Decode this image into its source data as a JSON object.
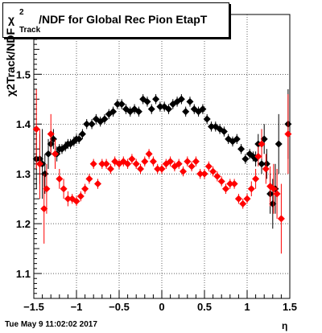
{
  "title": {
    "chi": "χ",
    "sup": "2",
    "sub": "Track",
    "rest": "/NDF for Global Rec Pion EtapT"
  },
  "footer": "Tue May  9 11:02:02 2017",
  "chart_data": {
    "type": "scatter",
    "title": "χ2Track/NDF for Global Rec Pion EtapT",
    "xlabel": "η",
    "ylabel": "χ2Track/NDF",
    "xlim": [
      -1.5,
      1.5
    ],
    "ylim": [
      1.05,
      1.62
    ],
    "x_ticks": [
      -1.5,
      -1,
      -0.5,
      0,
      0.5,
      1,
      1.5
    ],
    "x_tick_labels": [
      "−1.5",
      "−1",
      "−0.5",
      "0",
      "0.5",
      "1",
      "1.5"
    ],
    "y_ticks": [
      1.1,
      1.2,
      1.3,
      1.4,
      1.5
    ],
    "y_tick_labels": [
      "1.1",
      "1.2",
      "1.3",
      "1.4",
      "1.5"
    ],
    "grid": true,
    "series": [
      {
        "color": "#000000",
        "marker": "diamond",
        "points": [
          {
            "x": -1.47,
            "y": 1.33,
            "err": 0.06
          },
          {
            "x": -1.43,
            "y": 1.33,
            "err": 0.05
          },
          {
            "x": -1.4,
            "y": 1.32,
            "err": 0.07
          },
          {
            "x": -1.37,
            "y": 1.3,
            "err": 0.04
          },
          {
            "x": -1.33,
            "y": 1.34,
            "err": 0.03
          },
          {
            "x": -1.3,
            "y": 1.36,
            "err": 0.02
          },
          {
            "x": -1.27,
            "y": 1.37,
            "err": 0.02
          },
          {
            "x": -1.23,
            "y": 1.34,
            "err": 0.015
          },
          {
            "x": -1.2,
            "y": 1.35,
            "err": 0.01
          },
          {
            "x": -1.17,
            "y": 1.35,
            "err": 0.01
          },
          {
            "x": -1.13,
            "y": 1.355,
            "err": 0.01
          },
          {
            "x": -1.1,
            "y": 1.36,
            "err": 0.01
          },
          {
            "x": -1.07,
            "y": 1.36,
            "err": 0.01
          },
          {
            "x": -1.03,
            "y": 1.365,
            "err": 0.01
          },
          {
            "x": -1.0,
            "y": 1.37,
            "err": 0.01
          },
          {
            "x": -0.97,
            "y": 1.37,
            "err": 0.01
          },
          {
            "x": -0.93,
            "y": 1.38,
            "err": 0.01
          },
          {
            "x": -0.88,
            "y": 1.4,
            "err": 0.01
          },
          {
            "x": -0.82,
            "y": 1.4,
            "err": 0.01
          },
          {
            "x": -0.77,
            "y": 1.41,
            "err": 0.01
          },
          {
            "x": -0.72,
            "y": 1.405,
            "err": 0.01
          },
          {
            "x": -0.67,
            "y": 1.41,
            "err": 0.01
          },
          {
            "x": -0.62,
            "y": 1.42,
            "err": 0.01
          },
          {
            "x": -0.57,
            "y": 1.425,
            "err": 0.01
          },
          {
            "x": -0.52,
            "y": 1.44,
            "err": 0.01
          },
          {
            "x": -0.47,
            "y": 1.44,
            "err": 0.01
          },
          {
            "x": -0.42,
            "y": 1.43,
            "err": 0.01
          },
          {
            "x": -0.37,
            "y": 1.425,
            "err": 0.01
          },
          {
            "x": -0.32,
            "y": 1.43,
            "err": 0.01
          },
          {
            "x": -0.27,
            "y": 1.425,
            "err": 0.01
          },
          {
            "x": -0.22,
            "y": 1.45,
            "err": 0.01
          },
          {
            "x": -0.17,
            "y": 1.445,
            "err": 0.01
          },
          {
            "x": -0.12,
            "y": 1.43,
            "err": 0.01
          },
          {
            "x": -0.07,
            "y": 1.45,
            "err": 0.01
          },
          {
            "x": -0.02,
            "y": 1.435,
            "err": 0.01
          },
          {
            "x": 0.03,
            "y": 1.435,
            "err": 0.01
          },
          {
            "x": 0.08,
            "y": 1.43,
            "err": 0.01
          },
          {
            "x": 0.13,
            "y": 1.44,
            "err": 0.01
          },
          {
            "x": 0.18,
            "y": 1.445,
            "err": 0.01
          },
          {
            "x": 0.23,
            "y": 1.45,
            "err": 0.01
          },
          {
            "x": 0.28,
            "y": 1.425,
            "err": 0.01
          },
          {
            "x": 0.33,
            "y": 1.445,
            "err": 0.01
          },
          {
            "x": 0.38,
            "y": 1.43,
            "err": 0.01
          },
          {
            "x": 0.43,
            "y": 1.425,
            "err": 0.01
          },
          {
            "x": 0.48,
            "y": 1.43,
            "err": 0.01
          },
          {
            "x": 0.53,
            "y": 1.41,
            "err": 0.01
          },
          {
            "x": 0.58,
            "y": 1.395,
            "err": 0.01
          },
          {
            "x": 0.63,
            "y": 1.395,
            "err": 0.01
          },
          {
            "x": 0.68,
            "y": 1.39,
            "err": 0.01
          },
          {
            "x": 0.73,
            "y": 1.385,
            "err": 0.01
          },
          {
            "x": 0.78,
            "y": 1.37,
            "err": 0.01
          },
          {
            "x": 0.83,
            "y": 1.365,
            "err": 0.01
          },
          {
            "x": 0.88,
            "y": 1.37,
            "err": 0.01
          },
          {
            "x": 0.93,
            "y": 1.35,
            "err": 0.01
          },
          {
            "x": 0.98,
            "y": 1.33,
            "err": 0.01
          },
          {
            "x": 1.03,
            "y": 1.34,
            "err": 0.01
          },
          {
            "x": 1.07,
            "y": 1.335,
            "err": 0.01
          },
          {
            "x": 1.1,
            "y": 1.33,
            "err": 0.015
          },
          {
            "x": 1.13,
            "y": 1.36,
            "err": 0.02
          },
          {
            "x": 1.17,
            "y": 1.32,
            "err": 0.02
          },
          {
            "x": 1.2,
            "y": 1.37,
            "err": 0.03
          },
          {
            "x": 1.23,
            "y": 1.32,
            "err": 0.03
          },
          {
            "x": 1.27,
            "y": 1.26,
            "err": 0.04
          },
          {
            "x": 1.3,
            "y": 1.24,
            "err": 0.05
          },
          {
            "x": 1.33,
            "y": 1.27,
            "err": 0.05
          },
          {
            "x": 1.37,
            "y": 1.36,
            "err": 0.06
          },
          {
            "x": 1.48,
            "y": 1.4,
            "err": 0.07
          }
        ]
      },
      {
        "color": "#ff0000",
        "marker": "diamond",
        "points": [
          {
            "x": -1.47,
            "y": 1.39,
            "err": 0.08
          },
          {
            "x": -1.43,
            "y": 1.32,
            "err": 0.07
          },
          {
            "x": -1.38,
            "y": 1.23,
            "err": 0.07
          },
          {
            "x": -1.35,
            "y": 1.27,
            "err": 0.05
          },
          {
            "x": -1.3,
            "y": 1.38,
            "err": 0.04
          },
          {
            "x": -1.25,
            "y": 1.34,
            "err": 0.03
          },
          {
            "x": -1.2,
            "y": 1.29,
            "err": 0.02
          },
          {
            "x": -1.15,
            "y": 1.27,
            "err": 0.02
          },
          {
            "x": -1.1,
            "y": 1.25,
            "err": 0.015
          },
          {
            "x": -1.05,
            "y": 1.25,
            "err": 0.01
          },
          {
            "x": -1.0,
            "y": 1.245,
            "err": 0.01
          },
          {
            "x": -0.95,
            "y": 1.255,
            "err": 0.01
          },
          {
            "x": -0.9,
            "y": 1.27,
            "err": 0.01
          },
          {
            "x": -0.85,
            "y": 1.29,
            "err": 0.01
          },
          {
            "x": -0.8,
            "y": 1.32,
            "err": 0.01
          },
          {
            "x": -0.75,
            "y": 1.28,
            "err": 0.01
          },
          {
            "x": -0.7,
            "y": 1.32,
            "err": 0.01
          },
          {
            "x": -0.65,
            "y": 1.32,
            "err": 0.01
          },
          {
            "x": -0.6,
            "y": 1.31,
            "err": 0.01
          },
          {
            "x": -0.55,
            "y": 1.325,
            "err": 0.01
          },
          {
            "x": -0.5,
            "y": 1.32,
            "err": 0.01
          },
          {
            "x": -0.45,
            "y": 1.325,
            "err": 0.01
          },
          {
            "x": -0.4,
            "y": 1.32,
            "err": 0.01
          },
          {
            "x": -0.35,
            "y": 1.33,
            "err": 0.01
          },
          {
            "x": -0.3,
            "y": 1.32,
            "err": 0.01
          },
          {
            "x": -0.25,
            "y": 1.31,
            "err": 0.01
          },
          {
            "x": -0.2,
            "y": 1.325,
            "err": 0.01
          },
          {
            "x": -0.15,
            "y": 1.34,
            "err": 0.01
          },
          {
            "x": -0.1,
            "y": 1.325,
            "err": 0.01
          },
          {
            "x": -0.05,
            "y": 1.31,
            "err": 0.01
          },
          {
            "x": 0.0,
            "y": 1.31,
            "err": 0.01
          },
          {
            "x": 0.05,
            "y": 1.32,
            "err": 0.01
          },
          {
            "x": 0.1,
            "y": 1.325,
            "err": 0.01
          },
          {
            "x": 0.15,
            "y": 1.315,
            "err": 0.01
          },
          {
            "x": 0.2,
            "y": 1.32,
            "err": 0.01
          },
          {
            "x": 0.25,
            "y": 1.305,
            "err": 0.01
          },
          {
            "x": 0.3,
            "y": 1.325,
            "err": 0.01
          },
          {
            "x": 0.35,
            "y": 1.315,
            "err": 0.01
          },
          {
            "x": 0.4,
            "y": 1.325,
            "err": 0.01
          },
          {
            "x": 0.45,
            "y": 1.3,
            "err": 0.01
          },
          {
            "x": 0.5,
            "y": 1.3,
            "err": 0.01
          },
          {
            "x": 0.55,
            "y": 1.315,
            "err": 0.01
          },
          {
            "x": 0.6,
            "y": 1.305,
            "err": 0.01
          },
          {
            "x": 0.65,
            "y": 1.295,
            "err": 0.01
          },
          {
            "x": 0.7,
            "y": 1.285,
            "err": 0.01
          },
          {
            "x": 0.75,
            "y": 1.27,
            "err": 0.01
          },
          {
            "x": 0.8,
            "y": 1.28,
            "err": 0.01
          },
          {
            "x": 0.85,
            "y": 1.28,
            "err": 0.01
          },
          {
            "x": 0.9,
            "y": 1.25,
            "err": 0.01
          },
          {
            "x": 0.95,
            "y": 1.24,
            "err": 0.01
          },
          {
            "x": 1.0,
            "y": 1.25,
            "err": 0.01
          },
          {
            "x": 1.05,
            "y": 1.27,
            "err": 0.015
          },
          {
            "x": 1.1,
            "y": 1.29,
            "err": 0.02
          },
          {
            "x": 1.13,
            "y": 1.335,
            "err": 0.02
          },
          {
            "x": 1.17,
            "y": 1.36,
            "err": 0.03
          },
          {
            "x": 1.22,
            "y": 1.31,
            "err": 0.03
          },
          {
            "x": 1.27,
            "y": 1.275,
            "err": 0.04
          },
          {
            "x": 1.31,
            "y": 1.27,
            "err": 0.05
          },
          {
            "x": 1.35,
            "y": 1.26,
            "err": 0.05
          },
          {
            "x": 1.4,
            "y": 1.21,
            "err": 0.07
          },
          {
            "x": 1.48,
            "y": 1.38,
            "err": 0.08
          }
        ]
      }
    ]
  }
}
